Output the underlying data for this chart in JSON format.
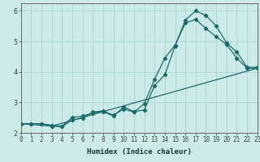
{
  "xlabel": "Humidex (Indice chaleur)",
  "bg_color": "#cceae8",
  "grid_color": "#aad4d0",
  "line_color": "#1a6b6b",
  "line1_x": [
    0,
    1,
    2,
    3,
    4,
    5,
    6,
    7,
    8,
    9,
    10,
    11,
    12,
    13,
    14,
    15,
    16,
    17,
    18,
    19,
    20,
    21,
    22,
    23
  ],
  "line1_y": [
    2.3,
    2.3,
    2.3,
    2.25,
    2.22,
    2.5,
    2.55,
    2.65,
    2.7,
    2.55,
    2.85,
    2.7,
    2.75,
    3.55,
    3.9,
    4.85,
    5.7,
    6.0,
    5.85,
    5.5,
    4.95,
    4.65,
    4.15,
    4.15
  ],
  "line2_x": [
    0,
    1,
    2,
    3,
    4,
    5,
    6,
    7,
    8,
    9,
    10,
    11,
    12,
    13,
    14,
    15,
    16,
    17,
    18,
    19,
    20,
    21,
    22,
    23
  ],
  "line2_y": [
    2.3,
    2.3,
    2.3,
    2.22,
    2.2,
    2.42,
    2.48,
    2.68,
    2.72,
    2.58,
    2.78,
    2.68,
    2.95,
    3.75,
    4.45,
    4.88,
    5.6,
    5.72,
    5.42,
    5.15,
    4.9,
    4.45,
    4.12,
    4.12
  ],
  "line3_x": [
    0,
    3,
    23
  ],
  "line3_y": [
    2.3,
    2.22,
    4.12
  ],
  "xlim": [
    0,
    23
  ],
  "ylim": [
    2.0,
    6.25
  ],
  "xticks": [
    0,
    1,
    2,
    3,
    4,
    5,
    6,
    7,
    8,
    9,
    10,
    11,
    12,
    13,
    14,
    15,
    16,
    17,
    18,
    19,
    20,
    21,
    22,
    23
  ],
  "yticks": [
    2,
    3,
    4,
    5,
    6
  ],
  "marker": "D",
  "markersize": 2.2,
  "linewidth": 0.9,
  "tick_fontsize": 5.5,
  "xlabel_fontsize": 6.5
}
